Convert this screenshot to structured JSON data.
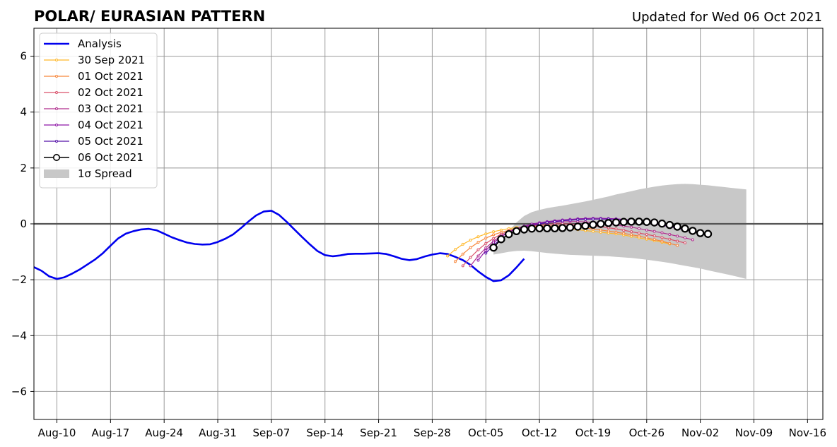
{
  "chart_data": {
    "type": "line",
    "title": "POLAR/ EURASIAN  PATTERN",
    "updated": "Updated for Wed 06 Oct 2021",
    "xlabel": "",
    "ylabel": "",
    "xlim": [
      "2021-08-07",
      "2021-11-18"
    ],
    "ylim": [
      -7,
      7
    ],
    "grid": true,
    "legend_position": "top-left",
    "x_ticks": [
      "2021-08-10",
      "2021-08-17",
      "2021-08-24",
      "2021-08-31",
      "2021-09-07",
      "2021-09-14",
      "2021-09-21",
      "2021-09-28",
      "2021-10-05",
      "2021-10-12",
      "2021-10-19",
      "2021-10-26",
      "2021-11-02",
      "2021-11-09",
      "2021-11-16"
    ],
    "x_tick_labels": [
      "Aug-10",
      "Aug-17",
      "Aug-24",
      "Aug-31",
      "Sep-07",
      "Sep-14",
      "Sep-21",
      "Sep-28",
      "Oct-05",
      "Oct-12",
      "Oct-19",
      "Oct-26",
      "Nov-02",
      "Nov-09",
      "Nov-16"
    ],
    "y_ticks": [
      -6,
      -4,
      -2,
      0,
      2,
      4,
      6
    ],
    "y_tick_labels": [
      "−6",
      "−4",
      "−2",
      "0",
      "2",
      "4",
      "6"
    ],
    "analysis": {
      "name": "Analysis",
      "color": "#0000ee",
      "start": "2021-08-07",
      "values": [
        -1.55,
        -1.68,
        -1.88,
        -1.97,
        -1.91,
        -1.78,
        -1.63,
        -1.45,
        -1.27,
        -1.05,
        -0.78,
        -0.52,
        -0.35,
        -0.26,
        -0.2,
        -0.18,
        -0.23,
        -0.35,
        -0.48,
        -0.58,
        -0.67,
        -0.72,
        -0.74,
        -0.73,
        -0.65,
        -0.53,
        -0.38,
        -0.16,
        0.08,
        0.3,
        0.44,
        0.47,
        0.32,
        0.07,
        -0.2,
        -0.47,
        -0.73,
        -0.97,
        -1.12,
        -1.16,
        -1.13,
        -1.08,
        -1.07,
        -1.07,
        -1.06,
        -1.05,
        -1.08,
        -1.16,
        -1.25,
        -1.3,
        -1.26,
        -1.17,
        -1.1,
        -1.05,
        -1.08,
        -1.18,
        -1.3,
        -1.47,
        -1.7,
        -1.9,
        -2.05,
        -2.02,
        -1.84,
        -1.56,
        -1.25
      ]
    },
    "forecasts": [
      {
        "name": "30 Sep 2021",
        "color": "#ffb829",
        "start": "2021-09-30",
        "values": [
          -1.15,
          -0.92,
          -0.73,
          -0.58,
          -0.46,
          -0.36,
          -0.28,
          -0.22,
          -0.17,
          -0.13,
          -0.11,
          -0.1,
          -0.1,
          -0.11,
          -0.13,
          -0.15,
          -0.18,
          -0.21,
          -0.24,
          -0.27,
          -0.3,
          -0.33,
          -0.36,
          -0.4,
          -0.45,
          -0.5,
          -0.55,
          -0.6,
          -0.66,
          -0.72
        ]
      },
      {
        "name": "01 Oct 2021",
        "color": "#f7863a",
        "start": "2021-10-01",
        "values": [
          -1.35,
          -1.08,
          -0.85,
          -0.66,
          -0.51,
          -0.39,
          -0.3,
          -0.23,
          -0.17,
          -0.13,
          -0.1,
          -0.08,
          -0.07,
          -0.07,
          -0.08,
          -0.1,
          -0.12,
          -0.15,
          -0.18,
          -0.22,
          -0.26,
          -0.3,
          -0.34,
          -0.39,
          -0.44,
          -0.5,
          -0.56,
          -0.62,
          -0.7,
          -0.77
        ]
      },
      {
        "name": "02 Oct 2021",
        "color": "#d9506a",
        "start": "2021-10-02",
        "values": [
          -1.5,
          -1.2,
          -0.93,
          -0.7,
          -0.52,
          -0.37,
          -0.26,
          -0.18,
          -0.12,
          -0.07,
          -0.04,
          -0.02,
          0.0,
          0.0,
          -0.01,
          -0.02,
          -0.04,
          -0.07,
          -0.1,
          -0.14,
          -0.18,
          -0.23,
          -0.28,
          -0.33,
          -0.38,
          -0.43,
          -0.49,
          -0.55,
          -0.62,
          -0.68
        ]
      },
      {
        "name": "03 Oct 2021",
        "color": "#b02f8e",
        "start": "2021-10-03",
        "values": [
          -1.5,
          -1.15,
          -0.86,
          -0.62,
          -0.43,
          -0.29,
          -0.18,
          -0.1,
          -0.04,
          0.01,
          0.04,
          0.06,
          0.07,
          0.08,
          0.08,
          0.07,
          0.05,
          0.03,
          0.0,
          -0.04,
          -0.08,
          -0.12,
          -0.17,
          -0.22,
          -0.27,
          -0.32,
          -0.38,
          -0.44,
          -0.5,
          -0.57
        ]
      },
      {
        "name": "04 Oct 2021",
        "color": "#8e17a6",
        "start": "2021-10-04",
        "values": [
          -1.3,
          -0.95,
          -0.68,
          -0.46,
          -0.3,
          -0.17,
          -0.08,
          -0.01,
          0.04,
          0.08,
          0.11,
          0.14,
          0.16,
          0.18,
          0.19,
          0.2,
          0.2,
          0.19,
          0.18,
          0.16,
          0.13,
          0.09,
          0.05,
          0.0,
          -0.05,
          -0.1,
          -0.16,
          -0.22,
          -0.28,
          -0.35
        ]
      },
      {
        "name": "05 Oct 2021",
        "color": "#5411a8",
        "start": "2021-10-05",
        "values": [
          -1.05,
          -0.76,
          -0.54,
          -0.37,
          -0.24,
          -0.14,
          -0.06,
          0.0,
          0.05,
          0.08,
          0.11,
          0.13,
          0.15,
          0.16,
          0.17,
          0.17,
          0.17,
          0.16,
          0.14,
          0.12,
          0.09,
          0.05,
          0.01,
          -0.04,
          -0.09,
          -0.15,
          -0.21,
          -0.28,
          -0.35,
          -0.42
        ]
      },
      {
        "name": "06 Oct 2021",
        "color": "#000000",
        "start": "2021-10-06",
        "values": [
          -0.85,
          -0.55,
          -0.37,
          -0.26,
          -0.2,
          -0.17,
          -0.16,
          -0.16,
          -0.16,
          -0.15,
          -0.13,
          -0.1,
          -0.07,
          -0.03,
          0.0,
          0.03,
          0.05,
          0.07,
          0.08,
          0.08,
          0.07,
          0.05,
          0.01,
          -0.04,
          -0.1,
          -0.17,
          -0.25,
          -0.33,
          -0.36
        ]
      }
    ],
    "spread": {
      "name": "1σ Spread",
      "color": "#c8c8c8",
      "start": "2021-10-06",
      "upper": [
        -1.0,
        -0.6,
        -0.25,
        0.05,
        0.28,
        0.42,
        0.5,
        0.56,
        0.61,
        0.65,
        0.7,
        0.75,
        0.8,
        0.86,
        0.92,
        0.98,
        1.05,
        1.11,
        1.17,
        1.23,
        1.28,
        1.33,
        1.37,
        1.4,
        1.42,
        1.43,
        1.42,
        1.4,
        1.38,
        1.35,
        1.32,
        1.29,
        1.26,
        1.23
      ],
      "lower": [
        -1.1,
        -1.05,
        -1.0,
        -0.97,
        -0.96,
        -0.98,
        -1.01,
        -1.04,
        -1.07,
        -1.09,
        -1.11,
        -1.12,
        -1.13,
        -1.14,
        -1.15,
        -1.16,
        -1.18,
        -1.2,
        -1.22,
        -1.25,
        -1.28,
        -1.32,
        -1.36,
        -1.4,
        -1.45,
        -1.5,
        -1.55,
        -1.6,
        -1.66,
        -1.72,
        -1.78,
        -1.84,
        -1.9,
        -1.97
      ]
    }
  }
}
